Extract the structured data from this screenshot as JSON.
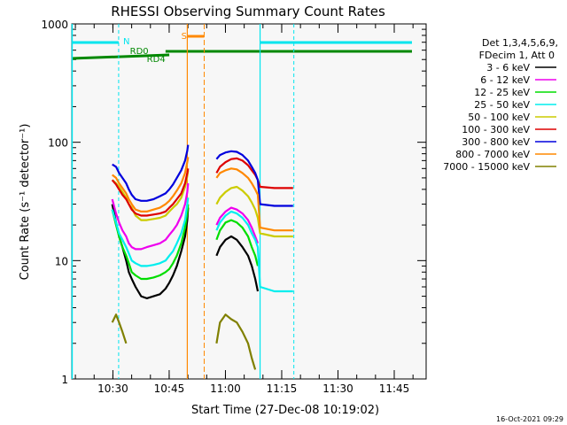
{
  "chart_data": {
    "type": "line",
    "title": "RHESSI Observing Summary Count Rates",
    "xlabel": "Start Time (27-Dec-08 10:19:02)",
    "ylabel": "Count Rate (s⁻¹ detector⁻¹)",
    "y_scale": "log",
    "ylim": [
      1,
      1000
    ],
    "xlim": [
      "10:19:02",
      "11:53:30"
    ],
    "x_ticks": [
      "10:30",
      "10:45",
      "11:00",
      "11:15",
      "11:30",
      "11:45"
    ],
    "y_ticks": [
      "1",
      "10",
      "100",
      "1000"
    ],
    "timestamp": "16-Oct-2021 09:29",
    "legend_header": [
      "Det 1,3,4,5,6,9,",
      "FDecim 1, Att 0"
    ],
    "series": [
      {
        "name": "3 - 6 keV",
        "color": "#000000",
        "points": [
          [
            10.8,
            30
          ],
          [
            11.8,
            21
          ],
          [
            12.6,
            16
          ],
          [
            13.5,
            13
          ],
          [
            14.5,
            10
          ],
          [
            15.2,
            8
          ],
          [
            16,
            7
          ],
          [
            17,
            6
          ],
          [
            18.5,
            5
          ],
          [
            20,
            4.8
          ],
          [
            21.8,
            5
          ],
          [
            23.5,
            5.2
          ],
          [
            25,
            5.8
          ],
          [
            26,
            6.5
          ],
          [
            27,
            7.5
          ],
          [
            28,
            9
          ],
          [
            29.2,
            12
          ],
          [
            30.2,
            16
          ],
          [
            30.8,
            22
          ],
          [
            31,
            28
          ]
        ],
        "gaps": [
          [
            31.3,
            38.2
          ]
        ],
        "points2": [
          [
            38.6,
            11
          ],
          [
            39.5,
            13
          ],
          [
            41,
            15
          ],
          [
            42.5,
            16
          ],
          [
            44,
            15
          ],
          [
            45.5,
            13
          ],
          [
            47,
            11
          ],
          [
            48,
            9
          ],
          [
            48.9,
            7
          ],
          [
            49.6,
            5.5
          ]
        ]
      },
      {
        "name": "6 - 12 keV",
        "color": "#ee00ee",
        "points": [
          [
            10.8,
            33
          ],
          [
            11.8,
            25
          ],
          [
            12.6,
            21
          ],
          [
            13.5,
            18
          ],
          [
            14.5,
            16
          ],
          [
            15.2,
            14
          ],
          [
            16,
            13
          ],
          [
            17,
            12.5
          ],
          [
            18.5,
            12.5
          ],
          [
            20,
            13
          ],
          [
            21.8,
            13.5
          ],
          [
            23.5,
            14
          ],
          [
            25,
            15
          ],
          [
            26,
            16.5
          ],
          [
            27,
            18
          ],
          [
            28,
            20
          ],
          [
            29.2,
            24
          ],
          [
            30.2,
            30
          ],
          [
            30.8,
            38
          ],
          [
            31,
            45
          ]
        ],
        "gaps": [
          [
            31.3,
            38.2
          ]
        ],
        "points2": [
          [
            38.6,
            20
          ],
          [
            39.5,
            23
          ],
          [
            41,
            26
          ],
          [
            42.5,
            28
          ],
          [
            44,
            27
          ],
          [
            45.5,
            25
          ],
          [
            47,
            22
          ],
          [
            48,
            19
          ],
          [
            48.9,
            16
          ],
          [
            49.6,
            14
          ]
        ]
      },
      {
        "name": "12 - 25 keV",
        "color": "#00dd00",
        "points": [
          [
            10.8,
            27
          ],
          [
            11.8,
            20
          ],
          [
            12.6,
            16
          ],
          [
            13.5,
            13
          ],
          [
            14.5,
            11
          ],
          [
            15.2,
            9.5
          ],
          [
            16,
            8
          ],
          [
            17,
            7.5
          ],
          [
            18.5,
            7
          ],
          [
            20,
            7
          ],
          [
            21.8,
            7.2
          ],
          [
            23.5,
            7.5
          ],
          [
            25,
            8
          ],
          [
            26,
            8.5
          ],
          [
            27,
            9.5
          ],
          [
            28,
            11
          ],
          [
            29.2,
            14
          ],
          [
            30.2,
            19
          ],
          [
            30.8,
            25
          ],
          [
            31,
            30
          ]
        ],
        "gaps": [
          [
            31.3,
            38.2
          ]
        ],
        "points2": [
          [
            38.6,
            15
          ],
          [
            39.5,
            18
          ],
          [
            41,
            21
          ],
          [
            42.5,
            22
          ],
          [
            44,
            21
          ],
          [
            45.5,
            19
          ],
          [
            47,
            16
          ],
          [
            48,
            13
          ],
          [
            48.9,
            11
          ],
          [
            49.6,
            9
          ]
        ]
      },
      {
        "name": "25 - 50 keV",
        "color": "#00eeee",
        "points": [
          [
            10.8,
            27
          ],
          [
            11.8,
            21
          ],
          [
            12.6,
            17
          ],
          [
            13.5,
            15
          ],
          [
            14.5,
            13
          ],
          [
            15.2,
            11.5
          ],
          [
            16,
            10
          ],
          [
            17,
            9.5
          ],
          [
            18.5,
            9
          ],
          [
            20,
            9
          ],
          [
            21.8,
            9.2
          ],
          [
            23.5,
            9.5
          ],
          [
            25,
            10
          ],
          [
            26,
            11
          ],
          [
            27,
            12
          ],
          [
            28,
            14
          ],
          [
            29.2,
            17
          ],
          [
            30.2,
            22
          ],
          [
            30.8,
            30
          ],
          [
            31,
            34
          ]
        ],
        "gaps": [
          [
            31.3,
            38.2
          ]
        ],
        "points2": [
          [
            38.6,
            18
          ],
          [
            39.5,
            21
          ],
          [
            41,
            24
          ],
          [
            42.5,
            26
          ],
          [
            44,
            25
          ],
          [
            45.5,
            23
          ],
          [
            47,
            20
          ],
          [
            48,
            17
          ],
          [
            48.9,
            15
          ],
          [
            49.6,
            13
          ],
          [
            50.2,
            6
          ],
          [
            54,
            5.5
          ],
          [
            59,
            5.5
          ]
        ]
      },
      {
        "name": "50 - 100 keV",
        "color": "#cccc00",
        "points": [
          [
            10.8,
            48
          ],
          [
            11.8,
            45
          ],
          [
            12.6,
            42
          ],
          [
            13.5,
            38
          ],
          [
            14.5,
            34
          ],
          [
            15.2,
            30
          ],
          [
            16,
            28
          ],
          [
            17,
            24
          ],
          [
            18.5,
            22
          ],
          [
            20,
            22
          ],
          [
            21.8,
            22.5
          ],
          [
            23.5,
            23
          ],
          [
            25,
            24
          ],
          [
            26,
            26
          ],
          [
            27,
            28
          ],
          [
            28,
            30
          ],
          [
            29.2,
            34
          ],
          [
            30.2,
            42
          ],
          [
            30.8,
            52
          ],
          [
            31,
            58
          ]
        ],
        "gaps": [
          [
            31.3,
            38.2
          ]
        ],
        "points2": [
          [
            38.6,
            30
          ],
          [
            39.5,
            34
          ],
          [
            41,
            38
          ],
          [
            42.5,
            41
          ],
          [
            44,
            42
          ],
          [
            45.5,
            39
          ],
          [
            47,
            35
          ],
          [
            48,
            31
          ],
          [
            48.9,
            27
          ],
          [
            49.6,
            23
          ],
          [
            50.2,
            17
          ],
          [
            54,
            16
          ],
          [
            59,
            16
          ]
        ]
      },
      {
        "name": "100 - 300 keV",
        "color": "#dd0000",
        "points": [
          [
            10.8,
            48
          ],
          [
            11.8,
            44
          ],
          [
            12.6,
            40
          ],
          [
            13.5,
            36
          ],
          [
            14.5,
            33
          ],
          [
            15.2,
            30
          ],
          [
            16,
            27
          ],
          [
            17,
            25
          ],
          [
            18.5,
            24
          ],
          [
            20,
            24
          ],
          [
            21.8,
            24.5
          ],
          [
            23.5,
            25
          ],
          [
            25,
            26
          ],
          [
            26,
            28
          ],
          [
            27,
            30
          ],
          [
            28,
            33
          ],
          [
            29.2,
            37
          ],
          [
            30.2,
            45
          ],
          [
            30.8,
            55
          ],
          [
            31,
            60
          ]
        ],
        "gaps": [
          [
            31.3,
            38.2
          ]
        ],
        "points2": [
          [
            38.6,
            55
          ],
          [
            39.5,
            62
          ],
          [
            41,
            68
          ],
          [
            42.5,
            72
          ],
          [
            44,
            73
          ],
          [
            45.5,
            70
          ],
          [
            47,
            64
          ],
          [
            48,
            58
          ],
          [
            48.9,
            53
          ],
          [
            49.6,
            48
          ],
          [
            50.2,
            42
          ],
          [
            54,
            41
          ],
          [
            59,
            41
          ]
        ]
      },
      {
        "name": "300 - 800 keV",
        "color": "#0000dd",
        "points": [
          [
            10.8,
            65
          ],
          [
            11.8,
            62
          ],
          [
            12.6,
            55
          ],
          [
            13.5,
            50
          ],
          [
            14.5,
            45
          ],
          [
            15.2,
            40
          ],
          [
            16,
            36
          ],
          [
            17,
            33
          ],
          [
            18.5,
            32
          ],
          [
            20,
            32
          ],
          [
            21.8,
            33
          ],
          [
            23.5,
            35
          ],
          [
            25,
            37
          ],
          [
            26,
            40
          ],
          [
            27,
            44
          ],
          [
            28,
            50
          ],
          [
            29.2,
            58
          ],
          [
            30.2,
            70
          ],
          [
            30.8,
            85
          ],
          [
            31,
            95
          ]
        ],
        "gaps": [
          [
            31.3,
            38.2
          ]
        ],
        "points2": [
          [
            38.6,
            72
          ],
          [
            39.5,
            78
          ],
          [
            41,
            82
          ],
          [
            42.5,
            84
          ],
          [
            44,
            83
          ],
          [
            45.5,
            78
          ],
          [
            47,
            70
          ],
          [
            48,
            62
          ],
          [
            48.9,
            55
          ],
          [
            49.6,
            48
          ],
          [
            50.2,
            30
          ],
          [
            54,
            29
          ],
          [
            59,
            29
          ]
        ]
      },
      {
        "name": "800 - 7000 keV",
        "color": "#ff8800",
        "points": [
          [
            10.8,
            53
          ],
          [
            11.8,
            50
          ],
          [
            12.6,
            45
          ],
          [
            13.5,
            41
          ],
          [
            14.5,
            37
          ],
          [
            15.2,
            33
          ],
          [
            16,
            30
          ],
          [
            17,
            27
          ],
          [
            18.5,
            26
          ],
          [
            20,
            26
          ],
          [
            21.8,
            27
          ],
          [
            23.5,
            28
          ],
          [
            25,
            30
          ],
          [
            26,
            32
          ],
          [
            27,
            35
          ],
          [
            28,
            39
          ],
          [
            29.2,
            45
          ],
          [
            30.2,
            55
          ],
          [
            30.8,
            68
          ],
          [
            31,
            75
          ]
        ],
        "gaps": [
          [
            31.3,
            38.2
          ]
        ],
        "points2": [
          [
            38.6,
            50
          ],
          [
            39.5,
            55
          ],
          [
            41,
            58
          ],
          [
            42.5,
            60
          ],
          [
            44,
            59
          ],
          [
            45.5,
            55
          ],
          [
            47,
            50
          ],
          [
            48,
            45
          ],
          [
            48.9,
            40
          ],
          [
            49.6,
            36
          ],
          [
            50.2,
            19
          ],
          [
            54,
            18
          ],
          [
            59,
            18
          ]
        ]
      },
      {
        "name": "7000 - 15000 keV",
        "color": "#808000",
        "points": [
          [
            10.8,
            3
          ],
          [
            11.8,
            3.5
          ],
          [
            12.6,
            3
          ],
          [
            13.5,
            2.5
          ],
          [
            14.5,
            2
          ]
        ],
        "gaps": [
          [
            14.5,
            38.2
          ]
        ],
        "points2": [
          [
            38.6,
            2
          ],
          [
            39.5,
            3
          ],
          [
            41,
            3.5
          ],
          [
            42.5,
            3.2
          ],
          [
            44,
            3
          ],
          [
            45.5,
            2.5
          ],
          [
            47,
            2
          ],
          [
            48,
            1.5
          ],
          [
            48.9,
            1.2
          ]
        ]
      }
    ],
    "annotations": [
      {
        "label": "N",
        "color": "#00e5ee"
      },
      {
        "label": "S",
        "color": "#ff8800"
      },
      {
        "label": "RD0",
        "color": "#008800"
      },
      {
        "label": "RD4",
        "color": "#008800"
      }
    ]
  }
}
